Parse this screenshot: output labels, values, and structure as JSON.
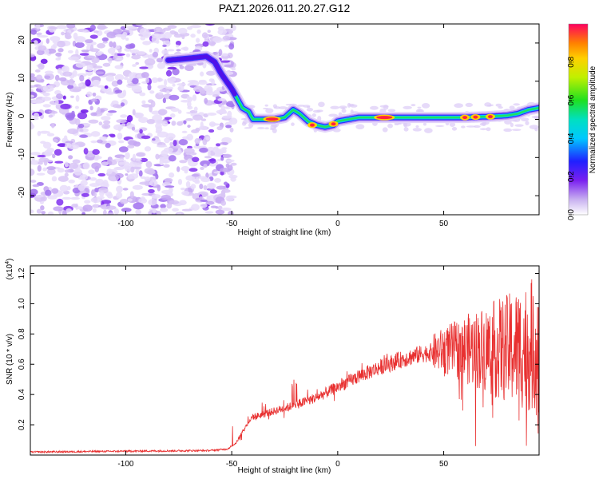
{
  "title": "PAZ1.2026.011.20.27.G12",
  "chart_data": [
    {
      "type": "heatmap",
      "xlabel": "Height of straight line (km)",
      "ylabel": "Frequency (Hz)",
      "xlim": [
        -145,
        95
      ],
      "ylim": [
        -25,
        25
      ],
      "xticks": [
        -100,
        -50,
        0,
        50
      ],
      "yticks": [
        -20,
        -10,
        0,
        10,
        20
      ],
      "ridge": {
        "x": [
          -80,
          -70,
          -62,
          -58,
          -55,
          -50,
          -47,
          -45,
          -42,
          -40,
          -35,
          -30,
          -25,
          -21,
          -18,
          -14,
          -10,
          -6,
          -2,
          0,
          5,
          10,
          20,
          30,
          40,
          50,
          60,
          70,
          80,
          85,
          90,
          95
        ],
        "y": [
          15.5,
          16,
          16.5,
          15,
          12,
          8,
          5,
          3,
          2,
          0,
          0,
          0,
          0.5,
          2.5,
          1.5,
          -0.5,
          -1.5,
          -2,
          -1.5,
          -0.5,
          0,
          0.5,
          0.5,
          0.5,
          0.5,
          0.5,
          0.5,
          0.7,
          1,
          1.5,
          2.5,
          3
        ]
      },
      "colorbar": {
        "label": "Normalized spectral amplitude",
        "range": [
          0,
          1
        ],
        "ticks": [
          0.0,
          0.2,
          0.4,
          0.6,
          0.8
        ],
        "tick_labels": [
          "0.0",
          "0.2",
          "0.4",
          "0.6",
          "0.8"
        ]
      }
    },
    {
      "type": "line",
      "xlabel": "Height of straight line (km)",
      "ylabel": "SNR (10 * v/v)",
      "scale_label": "(x10",
      "scale_exp": "4",
      "xlim": [
        -145,
        95
      ],
      "ylim": [
        0,
        1.25
      ],
      "xticks": [
        -100,
        -50,
        0,
        50
      ],
      "yticks": [
        0.2,
        0.4,
        0.6,
        0.8,
        1.0,
        1.2
      ],
      "ytick_labels": [
        "0.2",
        "0.4",
        "0.6",
        "0.8",
        "1.0",
        "1.2"
      ],
      "series": [
        {
          "name": "SNR",
          "color": "#e83030",
          "envelope_x": [
            -145,
            -60,
            -52,
            -48,
            -45,
            -42,
            -40,
            -35,
            -30,
            -20,
            -10,
            0,
            10,
            20,
            30,
            40,
            50,
            60,
            70,
            80,
            90,
            95
          ],
          "envelope_y": [
            0.02,
            0.03,
            0.04,
            0.08,
            0.15,
            0.22,
            0.25,
            0.27,
            0.29,
            0.33,
            0.38,
            0.45,
            0.52,
            0.58,
            0.63,
            0.67,
            0.69,
            0.7,
            0.7,
            0.7,
            0.72,
            0.72
          ]
        }
      ]
    }
  ]
}
